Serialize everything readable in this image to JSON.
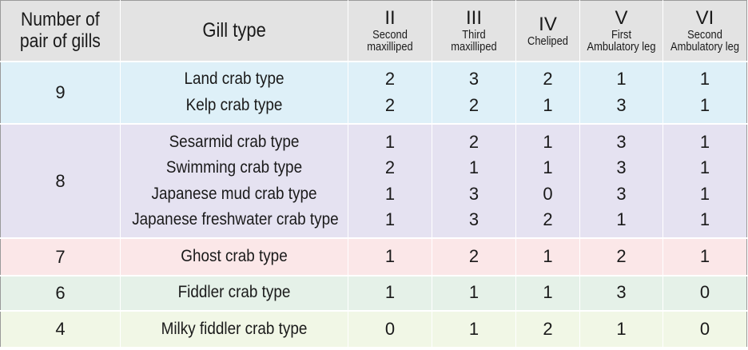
{
  "headers": {
    "pairs": [
      "Number of",
      "pair of gills"
    ],
    "gill_type": "Gill type",
    "columns": [
      {
        "roman": "II",
        "sub": [
          "Second",
          "maxilliped"
        ]
      },
      {
        "roman": "III",
        "sub": [
          "Third",
          "maxilliped"
        ]
      },
      {
        "roman": "IV",
        "sub": [
          "Cheliped"
        ]
      },
      {
        "roman": "V",
        "sub": [
          "First",
          "Ambulatory leg"
        ]
      },
      {
        "roman": "VI",
        "sub": [
          "Second",
          "Ambulatory leg"
        ]
      }
    ]
  },
  "groups": [
    {
      "pairs": "9",
      "color": "#def0f8",
      "types": [
        {
          "name": "Land crab type",
          "values": [
            "2",
            "3",
            "2",
            "1",
            "1"
          ]
        },
        {
          "name": "Kelp crab type",
          "values": [
            "2",
            "2",
            "1",
            "3",
            "1"
          ]
        }
      ]
    },
    {
      "pairs": "8",
      "color": "#e5e2f1",
      "types": [
        {
          "name": "Sesarmid crab type",
          "values": [
            "1",
            "2",
            "1",
            "3",
            "1"
          ]
        },
        {
          "name": "Swimming crab type",
          "values": [
            "2",
            "1",
            "1",
            "3",
            "1"
          ]
        },
        {
          "name": "Japanese mud crab type",
          "values": [
            "1",
            "3",
            "0",
            "3",
            "1"
          ]
        },
        {
          "name": "Japanese freshwater crab type",
          "values": [
            "1",
            "3",
            "2",
            "1",
            "1"
          ]
        }
      ]
    },
    {
      "pairs": "7",
      "color": "#fbe7e8",
      "types": [
        {
          "name": "Ghost crab type",
          "values": [
            "1",
            "2",
            "1",
            "2",
            "1"
          ]
        }
      ]
    },
    {
      "pairs": "6",
      "color": "#e5f1e8",
      "types": [
        {
          "name": "Fiddler crab type",
          "values": [
            "1",
            "1",
            "1",
            "3",
            "0"
          ]
        }
      ]
    },
    {
      "pairs": "4",
      "color": "#f1f7e6",
      "types": [
        {
          "name": "Milky fiddler crab type",
          "values": [
            "0",
            "1",
            "2",
            "1",
            "0"
          ]
        }
      ]
    }
  ]
}
